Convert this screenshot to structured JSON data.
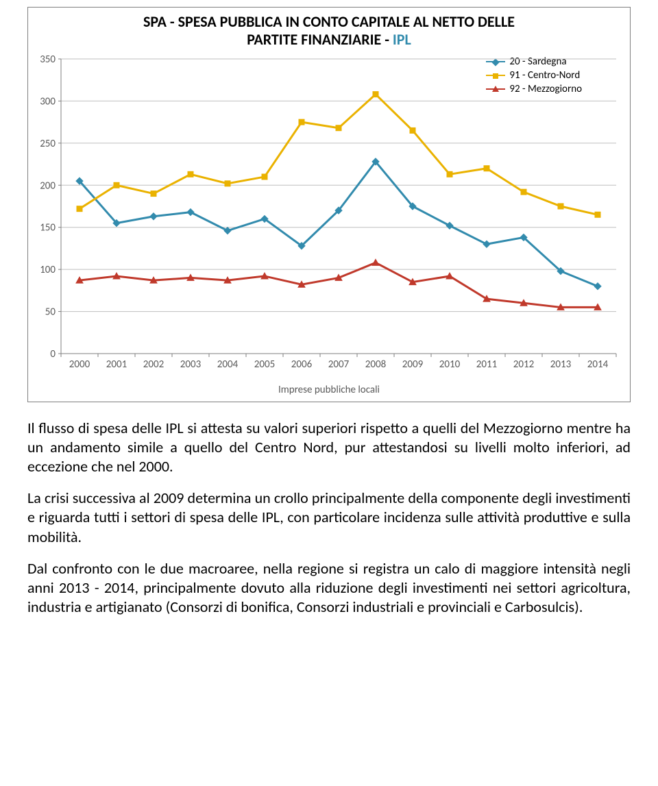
{
  "chart": {
    "type": "line",
    "title_line1": "SPA - SPESA PUBBLICA IN CONTO CAPITALE AL NETTO DELLE",
    "title_line2_a": "PARTITE FINANZIARIE - ",
    "title_line2_b": "IPL",
    "title_fontsize": 22,
    "background_color": "#ffffff",
    "border_color": "#7f7f7f",
    "grid_color": "#bfbfbf",
    "axis_color": "#7f7f7f",
    "label_color": "#595959",
    "label_fontsize": 15,
    "xlim": [
      "2000",
      "2014"
    ],
    "ylim": [
      0,
      350
    ],
    "ytick_step": 50,
    "y_ticks": [
      0,
      50,
      100,
      150,
      200,
      250,
      300,
      350
    ],
    "categories": [
      "2000",
      "2001",
      "2002",
      "2003",
      "2004",
      "2005",
      "2006",
      "2007",
      "2008",
      "2009",
      "2010",
      "2011",
      "2012",
      "2013",
      "2014"
    ],
    "line_width": 3,
    "marker_size": 8,
    "series": [
      {
        "id": "sardegna",
        "label": "20 - Sardegna",
        "color": "#328bad",
        "marker": "diamond",
        "values": [
          205,
          155,
          163,
          168,
          146,
          160,
          128,
          170,
          228,
          175,
          152,
          130,
          138,
          98,
          80
        ]
      },
      {
        "id": "centro-nord",
        "label": "91 - Centro-Nord",
        "color": "#eab200",
        "marker": "square",
        "values": [
          172,
          200,
          190,
          213,
          202,
          210,
          275,
          268,
          308,
          265,
          213,
          220,
          192,
          175,
          165
        ]
      },
      {
        "id": "mezzogiorno",
        "label": "92 - Mezzogiorno",
        "color": "#c0392b",
        "marker": "triangle",
        "values": [
          87,
          92,
          87,
          90,
          87,
          92,
          82,
          90,
          108,
          85,
          92,
          65,
          60,
          55,
          55
        ]
      }
    ],
    "footnote": "Imprese pubbliche locali",
    "legend_position": "top-right"
  },
  "paragraphs": {
    "p1": "Il flusso di spesa delle IPL si attesta su valori superiori rispetto a quelli del Mezzogiorno mentre ha un andamento simile a quello del Centro Nord, pur attestandosi su livelli molto inferiori, ad eccezione che nel 2000.",
    "p2": "La crisi successiva al 2009 determina un crollo principalmente della componente degli investimenti e riguarda tutti i settori di spesa delle IPL, con particolare incidenza sulle attività produttive e sulla mobilità.",
    "p3": "Dal confronto con le due macroaree, nella regione si registra un calo di maggiore intensità negli anni 2013 - 2014, principalmente dovuto alla riduzione degli investimenti  nei settori agricoltura, industria e artigianato (Consorzi di bonifica, Consorzi industriali e provinciali e Carbosulcis)."
  }
}
